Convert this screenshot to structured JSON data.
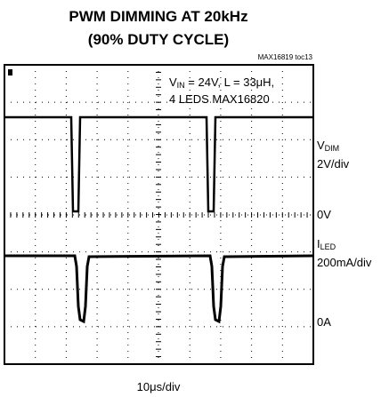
{
  "title": [
    "PWM DIMMING AT 20kHz",
    "(90% DUTY CYCLE)"
  ],
  "figure_code": "MAX16819 toc13",
  "annotation": [
    {
      "main": "V",
      "sub": "IN",
      "rest": " = 24V, L = 33μH,"
    },
    {
      "main": "4 LEDS MAX16820"
    }
  ],
  "channel_1": {
    "name": {
      "main": "V",
      "sub": "DIM"
    },
    "scale": "2V/div",
    "ground": "0V"
  },
  "channel_2": {
    "name": {
      "main": "I",
      "sub": "LED"
    },
    "scale": "200mA/div",
    "ground": "0A"
  },
  "time_scale": "10μs/div"
}
